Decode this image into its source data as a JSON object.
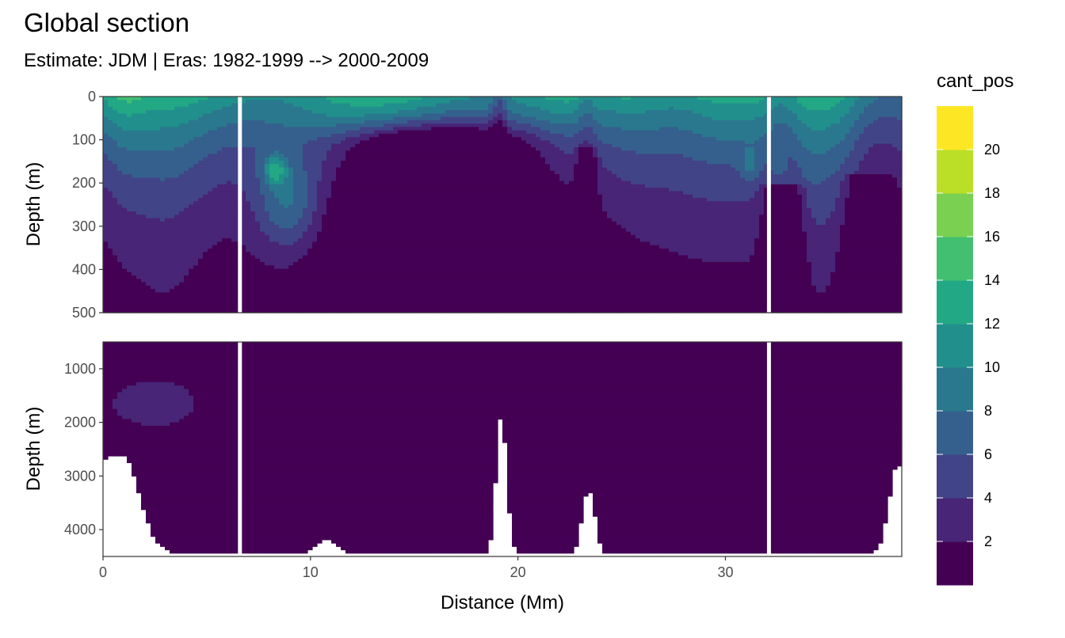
{
  "chart_data": {
    "type": "heatmap",
    "title": "Global section",
    "subtitle": "Estimate: JDM  | Eras: 1982-1999 --> 2000-2009",
    "xlabel": "Distance (Mm)",
    "ylabel": "Depth (m)",
    "x_range": [
      0,
      38.5
    ],
    "x_ticks": [
      "0",
      "10",
      "20",
      "30"
    ],
    "x_tick_values": [
      0,
      10,
      20,
      30
    ],
    "gaps_at_distance": [
      6.6,
      32.1
    ],
    "panels": [
      {
        "name": "upper",
        "ylim": [
          0,
          500
        ],
        "y_ticks": [
          "0",
          "100",
          "200",
          "300",
          "400",
          "500"
        ],
        "y_tick_values": [
          0,
          100,
          200,
          300,
          400,
          500
        ]
      },
      {
        "name": "lower",
        "ylim": [
          500,
          4500
        ],
        "y_ticks": [
          "1000",
          "2000",
          "3000",
          "4000"
        ],
        "y_tick_values": [
          1000,
          2000,
          3000,
          4000
        ]
      }
    ],
    "legend": {
      "title": "cant_pos",
      "position": "right",
      "breaks": [
        0,
        2,
        4,
        6,
        8,
        10,
        12,
        14,
        16,
        18,
        20,
        22
      ],
      "labels": [
        "2",
        "4",
        "6",
        "8",
        "10",
        "12",
        "14",
        "16",
        "18",
        "20"
      ],
      "colors": [
        "#440154",
        "#482576",
        "#414487",
        "#35608D",
        "#2A788E",
        "#21908C",
        "#22A884",
        "#43BF71",
        "#7AD151",
        "#BBDF27",
        "#FDE725"
      ]
    }
  }
}
